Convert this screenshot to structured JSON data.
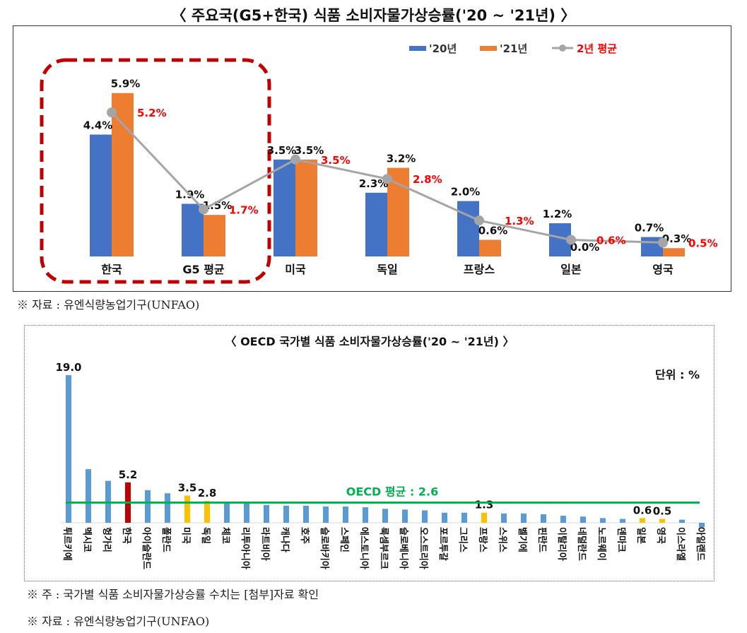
{
  "top": {
    "title": "〈 주요국(G5+한국) 식품 소비자물가상승률('20 ~ '21년) 〉",
    "source": "※ 자료 : 유엔식량농업기구(UNFAO)"
  },
  "bottom": {
    "note": "※ 주 : 국가별 식품 소비자물가상승률 수치는 [첨부]자료 확인",
    "source": "※ 자료 : 유엔식량농업기구(UNFAO)"
  },
  "chart_data": [
    {
      "type": "bar",
      "title": "〈 주요국(G5+한국) 식품 소비자물가상승률('20 ~ '21년) 〉",
      "categories": [
        "한국",
        "G5 평균",
        "미국",
        "독일",
        "프랑스",
        "일본",
        "영국"
      ],
      "series": [
        {
          "name": "'20년",
          "type": "bar",
          "color": "#4472C4",
          "values": [
            4.4,
            1.9,
            3.5,
            2.3,
            2.0,
            1.2,
            0.7
          ],
          "labels": [
            "4.4%",
            "1.9%",
            "3.5%",
            "2.3%",
            "2.0%",
            "1.2%",
            "0.7%"
          ]
        },
        {
          "name": "'21년",
          "type": "bar",
          "color": "#ED7D31",
          "values": [
            5.9,
            1.5,
            3.5,
            3.2,
            0.6,
            0.0,
            0.3
          ],
          "labels": [
            "5.9%",
            "1.5%",
            "3.5%",
            "3.2%",
            "0.6%",
            "0.0%",
            "0.3%"
          ]
        },
        {
          "name": "2년 평균",
          "type": "line",
          "color": "#A5A5A5",
          "label_color": "#FF0000",
          "values": [
            5.2,
            1.7,
            3.5,
            2.8,
            1.3,
            0.6,
            0.5
          ],
          "labels": [
            "5.2%",
            "1.7%",
            "3.5%",
            "2.8%",
            "1.3%",
            "0.6%",
            "0.5%"
          ]
        }
      ],
      "highlight": {
        "categories": [
          "한국",
          "G5 평균"
        ],
        "color": "#C00000",
        "style": "dashed rounded box"
      },
      "legend": "top-right",
      "grid": false,
      "ylim": [
        0,
        6.5
      ]
    },
    {
      "type": "bar",
      "title": "〈 OECD 국가별 식품 소비자물가상승률('20 ~ '21년) 〉",
      "unit_label": "단위 : %",
      "categories": [
        "튀르키예",
        "멕시코",
        "헝가리",
        "한국",
        "아이슬란드",
        "폴란드",
        "미국",
        "독일",
        "체코",
        "리투아니아",
        "라트비아",
        "캐나다",
        "호주",
        "슬로바키아",
        "스페인",
        "에스토니아",
        "룩셈부르크",
        "슬로베니아",
        "오스트리아",
        "포르투갈",
        "그리스",
        "프랑스",
        "스위스",
        "벨기에",
        "핀란드",
        "이탈리아",
        "네덜란드",
        "노르웨이",
        "덴마크",
        "일본",
        "영국",
        "이스라엘",
        "아일랜드"
      ],
      "values": [
        19.0,
        6.9,
        5.4,
        5.2,
        4.2,
        3.8,
        3.5,
        2.8,
        2.6,
        2.6,
        2.3,
        2.2,
        2.2,
        2.1,
        2.1,
        2.0,
        1.8,
        1.7,
        1.6,
        1.3,
        1.3,
        1.3,
        1.2,
        1.2,
        1.1,
        0.9,
        0.8,
        0.6,
        0.5,
        0.6,
        0.5,
        0.4,
        -0.6
      ],
      "data_labels": {
        "0": "19.0",
        "3": "5.2",
        "6": "3.5",
        "7": "2.8",
        "21": "1.3",
        "29": "0.6",
        "30": "0.5"
      },
      "bar_colors": {
        "default": "#5B9BD5",
        "korea": "#C00000",
        "g5": "#FFC000"
      },
      "highlight_indices": {
        "korea": [
          3
        ],
        "g5": [
          6,
          7,
          21,
          29,
          30
        ]
      },
      "reference_line": {
        "label": "OECD 평균 : 2.6",
        "value": 2.6,
        "color": "#00B050"
      },
      "grid": false,
      "ylim": [
        -1,
        19
      ]
    }
  ]
}
